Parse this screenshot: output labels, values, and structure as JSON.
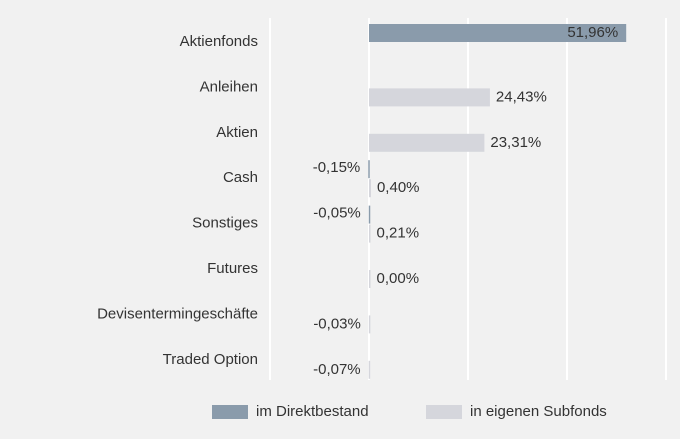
{
  "chart_data": {
    "type": "hbar",
    "categories": [
      "Aktienfonds",
      "Anleihen",
      "Aktien",
      "Cash",
      "Sonstiges",
      "Futures",
      "Devisentermingeschäfte",
      "Traded Option"
    ],
    "series": [
      {
        "name": "im Direktbestand",
        "color": "#8a9bab",
        "values": [
          51.96,
          null,
          null,
          -0.15,
          -0.05,
          null,
          null,
          null
        ],
        "value_labels": [
          "51,96%",
          null,
          null,
          "-0,15%",
          "-0,05%",
          null,
          null,
          null
        ]
      },
      {
        "name": "in eigenen Subfonds",
        "color": "#d5d6dc",
        "values": [
          null,
          24.43,
          23.31,
          0.4,
          0.21,
          0.0,
          -0.03,
          -0.07
        ],
        "value_labels": [
          null,
          "24,43%",
          "23,31%",
          "0,40%",
          "0,21%",
          "0,00%",
          "-0,03%",
          "-0,07%"
        ]
      }
    ],
    "xlim": [
      -20,
      60
    ],
    "xticks": [
      -20,
      0,
      20,
      40,
      60
    ],
    "grid": true,
    "legend": "bottom"
  }
}
